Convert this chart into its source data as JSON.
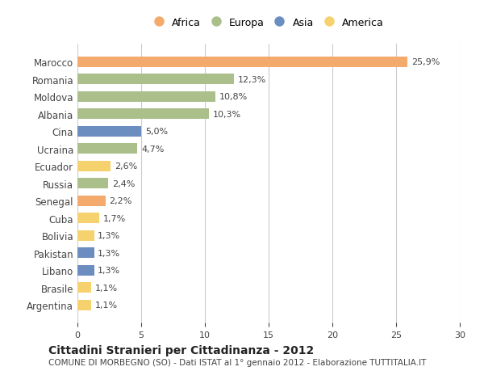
{
  "countries": [
    "Marocco",
    "Romania",
    "Moldova",
    "Albania",
    "Cina",
    "Ucraina",
    "Ecuador",
    "Russia",
    "Senegal",
    "Cuba",
    "Bolivia",
    "Pakistan",
    "Libano",
    "Brasile",
    "Argentina"
  ],
  "values": [
    25.9,
    12.3,
    10.8,
    10.3,
    5.0,
    4.7,
    2.6,
    2.4,
    2.2,
    1.7,
    1.3,
    1.3,
    1.3,
    1.1,
    1.1
  ],
  "continents": [
    "Africa",
    "Europa",
    "Europa",
    "Europa",
    "Asia",
    "Europa",
    "America",
    "Europa",
    "Africa",
    "America",
    "America",
    "Asia",
    "Asia",
    "America",
    "America"
  ],
  "colors": {
    "Africa": "#F4A96D",
    "Europa": "#AABF8A",
    "Asia": "#6B8DBF",
    "America": "#F5D26E"
  },
  "legend_entries": [
    "Africa",
    "Europa",
    "Asia",
    "America"
  ],
  "xlim": [
    0,
    30
  ],
  "xticks": [
    0,
    5,
    10,
    15,
    20,
    25,
    30
  ],
  "title": "Cittadini Stranieri per Cittadinanza - 2012",
  "subtitle": "COMUNE DI MORBEGNO (SO) - Dati ISTAT al 1° gennaio 2012 - Elaborazione TUTTITALIA.IT",
  "background_color": "#ffffff",
  "grid_color": "#cccccc",
  "bar_height": 0.6
}
